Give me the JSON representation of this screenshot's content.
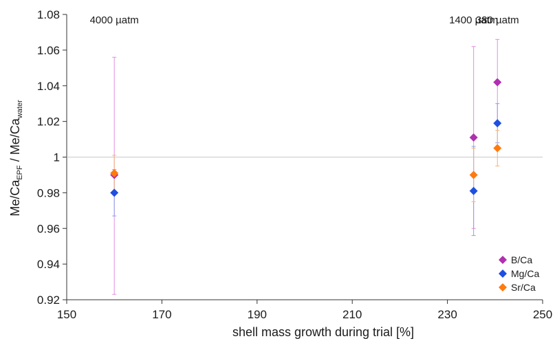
{
  "chart_data": {
    "type": "scatter",
    "title": "",
    "xlabel": "shell mass growth during trial [%]",
    "ylabel": {
      "main1": "Me/Ca",
      "sub1": "EPF",
      "main2": " / Me/Ca",
      "sub2": "water"
    },
    "xlim": [
      150,
      250
    ],
    "ylim": [
      0.92,
      1.08
    ],
    "x_ticks": [
      150,
      170,
      190,
      210,
      230,
      250
    ],
    "y_ticks": [
      0.92,
      0.94,
      0.96,
      0.98,
      1,
      1.02,
      1.04,
      1.06,
      1.08
    ],
    "reference_line_y": 1,
    "grid": false,
    "legend_position": "bottom-right",
    "annotations": [
      {
        "text": "4000 µatm",
        "x": 160
      },
      {
        "text": "1400 µatm",
        "x": 235.5
      },
      {
        "text": "380 µatm",
        "x": 240.5
      }
    ],
    "series": [
      {
        "name": "B/Ca",
        "color": "#b030b0",
        "error_color": "#e28ee2",
        "points": [
          {
            "x": 160,
            "y": 0.99,
            "low": 0.923,
            "high": 1.056
          },
          {
            "x": 235.5,
            "y": 1.011,
            "low": 0.96,
            "high": 1.062
          },
          {
            "x": 240.5,
            "y": 1.042,
            "low": 1.018,
            "high": 1.066
          }
        ]
      },
      {
        "name": "Mg/Ca",
        "color": "#1f4fe0",
        "error_color": "#8c9ee8",
        "points": [
          {
            "x": 160,
            "y": 0.98,
            "low": 0.967,
            "high": 0.993
          },
          {
            "x": 235.5,
            "y": 0.981,
            "low": 0.956,
            "high": 1.006
          },
          {
            "x": 240.5,
            "y": 1.019,
            "low": 1.008,
            "high": 1.03
          }
        ]
      },
      {
        "name": "Sr/Ca",
        "color": "#ff7a10",
        "error_color": "#f5b27a",
        "points": [
          {
            "x": 160,
            "y": 0.991,
            "low": 0.98,
            "high": 1.001
          },
          {
            "x": 235.5,
            "y": 0.99,
            "low": 0.975,
            "high": 1.005
          },
          {
            "x": 240.5,
            "y": 1.005,
            "low": 0.995,
            "high": 1.015
          }
        ]
      }
    ]
  }
}
